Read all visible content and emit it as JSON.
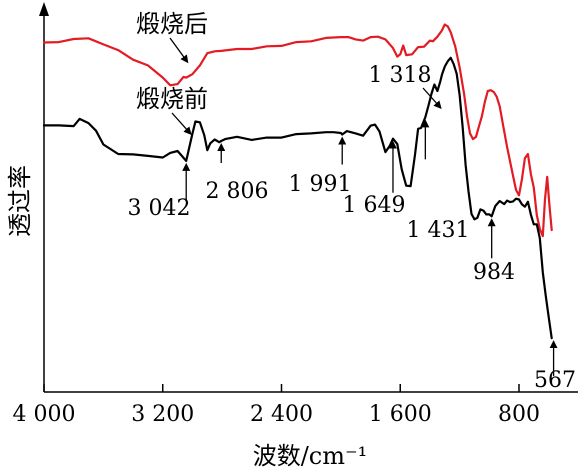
{
  "chart_data": {
    "type": "line",
    "title": "",
    "xlabel": "波数/cm⁻¹",
    "ylabel": "透过率",
    "x_reversed": true,
    "xlim": [
      4000,
      580
    ],
    "ylim": [
      0,
      100
    ],
    "x_ticks": [
      4000,
      3200,
      2400,
      1600,
      800
    ],
    "x_tick_labels": [
      "4 000",
      "3 200",
      "2 400",
      "1 600",
      "800"
    ],
    "grid": false,
    "colors": {
      "after": "#e31b23",
      "before": "#000000",
      "axis": "#000000"
    },
    "series": [
      {
        "key": "after",
        "name": "煅烧后",
        "x": [
          4000,
          3900,
          3800,
          3700,
          3600,
          3500,
          3400,
          3300,
          3200,
          3150,
          3100,
          3060,
          3042,
          3000,
          2950,
          2900,
          2850,
          2806,
          2700,
          2600,
          2500,
          2400,
          2300,
          2200,
          2100,
          2000,
          1950,
          1900,
          1850,
          1800,
          1750,
          1700,
          1650,
          1620,
          1600,
          1580,
          1560,
          1520,
          1480,
          1440,
          1400,
          1380,
          1350,
          1320,
          1300,
          1280,
          1260,
          1230,
          1200,
          1170,
          1150,
          1130,
          1110,
          1090,
          1070,
          1050,
          1030,
          1010,
          990,
          970,
          950,
          930,
          910,
          880,
          850,
          820,
          800,
          780,
          760,
          740,
          720,
          700,
          680,
          660,
          640,
          625,
          610,
          595,
          580
        ],
        "y": [
          91.5,
          91.6,
          92.4,
          92.6,
          91.0,
          89.5,
          87.0,
          85.5,
          82.3,
          80.3,
          80.6,
          82.5,
          82.3,
          83.2,
          85.5,
          88.7,
          89.2,
          89.3,
          89.8,
          89.8,
          90.5,
          90.6,
          91.6,
          91.8,
          92.7,
          92.9,
          92.9,
          92.3,
          92.0,
          92.9,
          93.0,
          92.3,
          90.1,
          87.8,
          88.4,
          90.7,
          88.2,
          88.4,
          90.3,
          90.4,
          92.0,
          91.8,
          93.0,
          94.6,
          96.2,
          95.7,
          94.2,
          90.5,
          85.0,
          78.0,
          72.2,
          67.7,
          66.2,
          66.8,
          69.5,
          72.2,
          76.0,
          78.8,
          79.0,
          78.5,
          77.3,
          74.8,
          70.4,
          64.1,
          58.4,
          52.9,
          51.5,
          55.8,
          61.2,
          62.3,
          57.0,
          53.5,
          46.3,
          42.7,
          40.8,
          50.5,
          56.3,
          49.0,
          42.4
        ]
      },
      {
        "key": "before",
        "name": "煅烧前",
        "x": [
          4000,
          3900,
          3800,
          3760,
          3700,
          3650,
          3600,
          3500,
          3400,
          3300,
          3200,
          3150,
          3100,
          3042,
          3000,
          2980,
          2950,
          2920,
          2900,
          2880,
          2850,
          2820,
          2806,
          2780,
          2700,
          2600,
          2500,
          2400,
          2300,
          2200,
          2100,
          2050,
          2000,
          1991,
          1960,
          1900,
          1850,
          1800,
          1770,
          1740,
          1700,
          1670,
          1649,
          1620,
          1590,
          1560,
          1530,
          1500,
          1480,
          1460,
          1431,
          1410,
          1390,
          1370,
          1350,
          1330,
          1318,
          1300,
          1280,
          1260,
          1240,
          1220,
          1200,
          1180,
          1160,
          1140,
          1120,
          1100,
          1080,
          1060,
          1040,
          1020,
          1000,
          984,
          960,
          930,
          900,
          880,
          860,
          840,
          820,
          800,
          780,
          760,
          740,
          720,
          700,
          680,
          660,
          640,
          620,
          600,
          580
        ],
        "y": [
          69.8,
          69.8,
          69.6,
          71.5,
          70.4,
          68.4,
          64.8,
          62.3,
          62.2,
          61.8,
          61.4,
          62.6,
          63.1,
          60.5,
          67.6,
          70.8,
          70.6,
          67.2,
          63.3,
          65.1,
          66.1,
          65.4,
          65.7,
          66.2,
          66.8,
          66.0,
          66.6,
          66.6,
          67.5,
          67.7,
          68.0,
          68.0,
          67.8,
          67.4,
          68.3,
          67.7,
          67.1,
          69.7,
          70.0,
          68.2,
          62.8,
          64.5,
          66.3,
          64.9,
          58.3,
          54.0,
          53.9,
          62.3,
          68.9,
          69.1,
          71.9,
          75.0,
          78.0,
          80.5,
          78.8,
          81.3,
          83.2,
          85.2,
          86.6,
          87.5,
          85.8,
          83.3,
          77.8,
          69.5,
          59.5,
          52.5,
          46.6,
          45.2,
          45.6,
          47.8,
          47.5,
          46.5,
          46.5,
          46.0,
          48.7,
          50.0,
          49.2,
          50.1,
          49.7,
          49.9,
          50.6,
          50.4,
          49.1,
          48.5,
          49.8,
          46.4,
          43.9,
          43.9,
          40.3,
          31.3,
          25.3,
          19.6,
          14.1
        ]
      }
    ],
    "series_labels": [
      {
        "series": "after",
        "text": "煅烧后"
      },
      {
        "series": "before",
        "text": "煅烧前"
      }
    ],
    "annotations": [
      {
        "text": "3 042",
        "x": 3042,
        "series": "before"
      },
      {
        "text": "2 806",
        "x": 2806,
        "series": "before"
      },
      {
        "text": "1 991",
        "x": 1991,
        "series": "before"
      },
      {
        "text": "1 649",
        "x": 1649,
        "series": "before"
      },
      {
        "text": "1 431",
        "x": 1431,
        "series": "before"
      },
      {
        "text": "1 318",
        "x": 1318,
        "series": "before"
      },
      {
        "text": "984",
        "x": 984,
        "series": "before"
      },
      {
        "text": "567",
        "x": 567,
        "series": "before"
      }
    ]
  }
}
